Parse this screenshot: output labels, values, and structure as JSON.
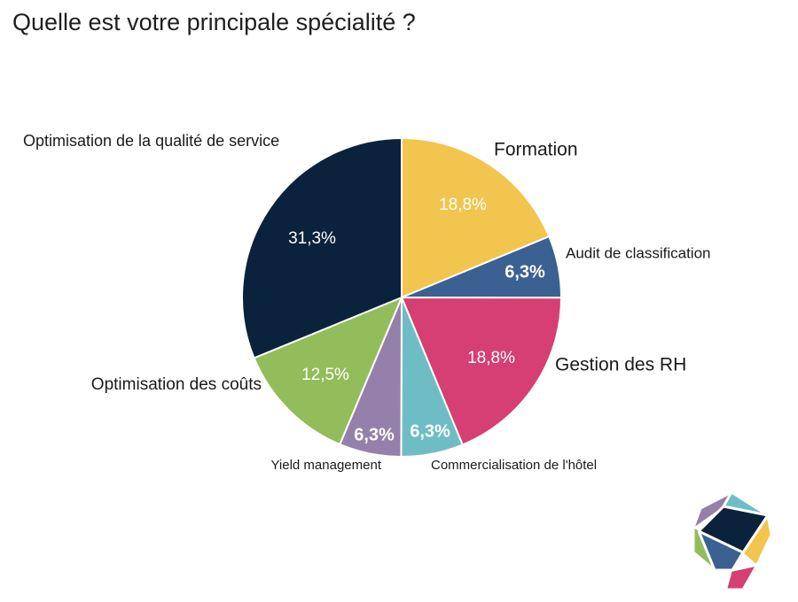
{
  "question": "Quelle est votre principale spécialité ?",
  "chart_data": {
    "type": "pie",
    "title": "",
    "slices": [
      {
        "label": "Formation",
        "value": 18.8,
        "display": "18,8%",
        "color": "#f2c54e",
        "value_color": "#ffffff"
      },
      {
        "label": "Audit de classification",
        "value": 6.3,
        "display": "6,3%",
        "color": "#3b6192",
        "value_color": "#ffffff"
      },
      {
        "label": "Gestion des RH",
        "value": 18.8,
        "display": "18,8%",
        "color": "#d53f73",
        "value_color": "#ffffff"
      },
      {
        "label": "Commercialisation de l'hôtel",
        "value": 6.3,
        "display": "6,3%",
        "color": "#6fbdc4",
        "value_color": "#ffffff"
      },
      {
        "label": "Yield management",
        "value": 6.3,
        "display": "6,3%",
        "color": "#9580ab",
        "value_color": "#ffffff"
      },
      {
        "label": "Optimisation des coûts",
        "value": 12.5,
        "display": "12,5%",
        "color": "#92bd5a",
        "value_color": "#ffffff"
      },
      {
        "label": "Optimisation de la qualité de service",
        "value": 31.3,
        "display": "31,3%",
        "color": "#0b223c",
        "value_color": "#ffffff"
      }
    ],
    "start_angle_deg": 0,
    "direction": "clockwise"
  },
  "logo": {
    "name": "map-pin-logo",
    "colors": [
      "#0b223c",
      "#6fbdc4",
      "#9580ab",
      "#f2c54e",
      "#92bd5a",
      "#3b6192",
      "#d53f73"
    ]
  }
}
